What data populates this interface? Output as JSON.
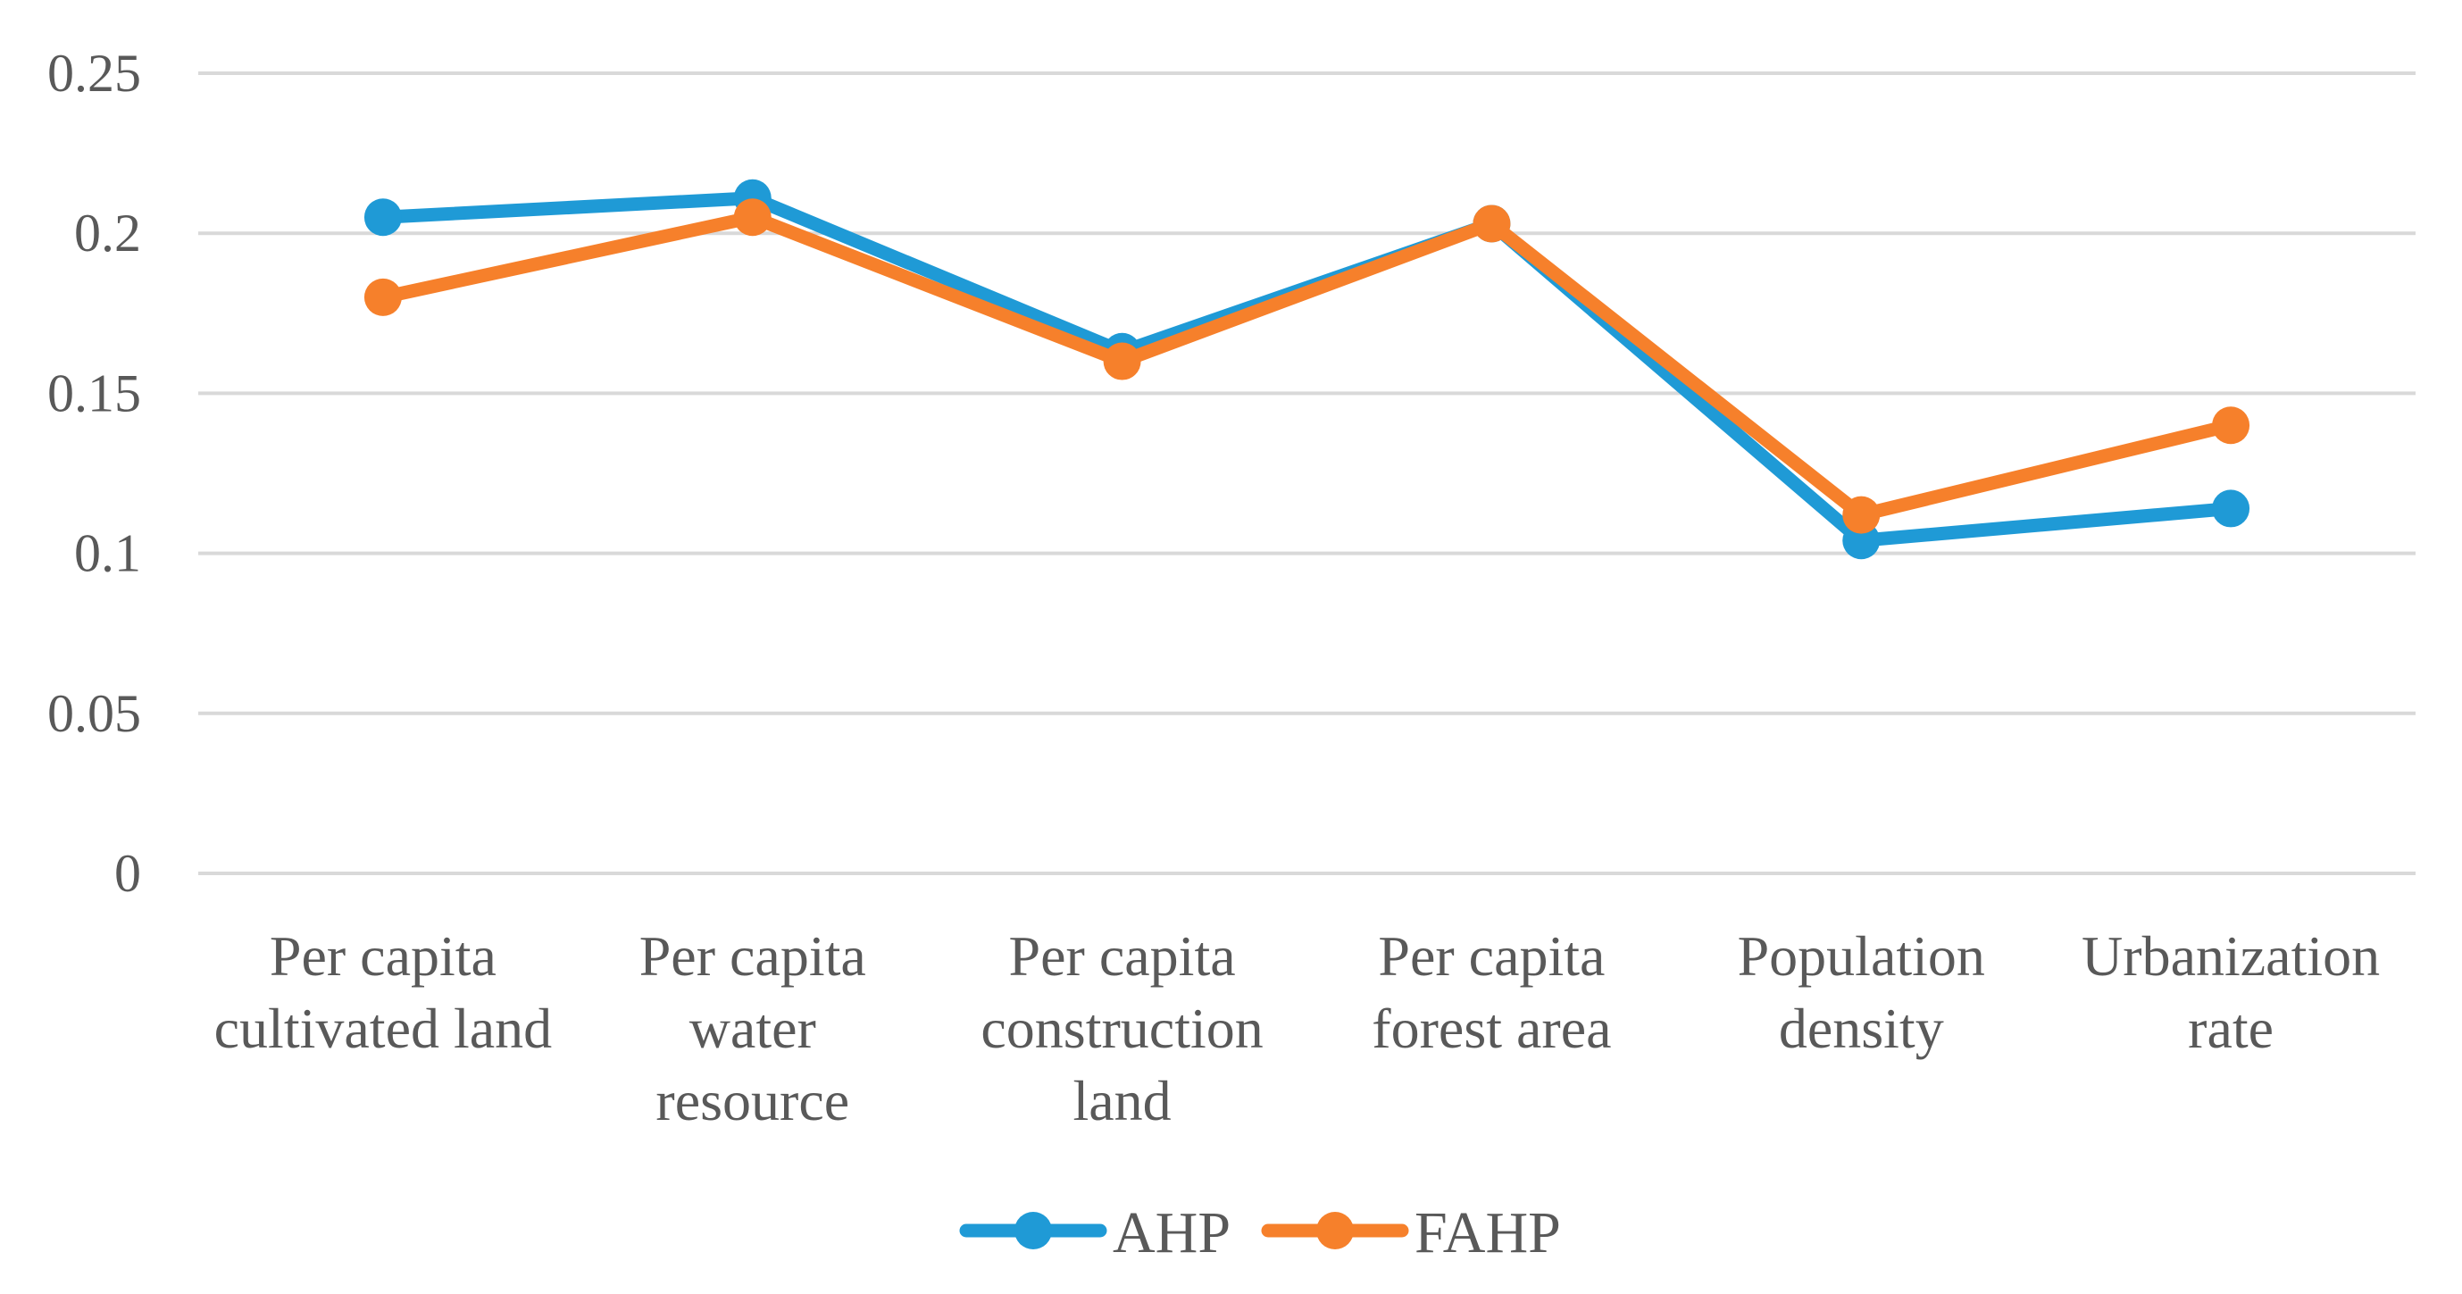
{
  "chart_data": {
    "type": "line",
    "title": "",
    "xlabel": "",
    "ylabel": "",
    "ylim": [
      0,
      0.25
    ],
    "yticks": [
      {
        "value": 0,
        "label": "0"
      },
      {
        "value": 0.05,
        "label": "0.05"
      },
      {
        "value": 0.1,
        "label": "0.1"
      },
      {
        "value": 0.15,
        "label": "0.15"
      },
      {
        "value": 0.2,
        "label": "0.2"
      },
      {
        "value": 0.25,
        "label": "0.25"
      }
    ],
    "grid": true,
    "legend_position": "bottom",
    "categories": [
      [
        "Per capita",
        "cultivated land"
      ],
      [
        "Per capita",
        "water",
        "resource"
      ],
      [
        "Per capita",
        "construction",
        "land"
      ],
      [
        "Per capita",
        "forest area"
      ],
      [
        "Population",
        "density"
      ],
      [
        "Urbanization",
        "rate"
      ]
    ],
    "series": [
      {
        "name": "AHP",
        "color": "#1f9ad6",
        "values": [
          0.205,
          0.211,
          0.163,
          0.203,
          0.104,
          0.114
        ]
      },
      {
        "name": "FAHP",
        "color": "#f6802b",
        "values": [
          0.18,
          0.205,
          0.16,
          0.203,
          0.112,
          0.14
        ]
      }
    ]
  }
}
